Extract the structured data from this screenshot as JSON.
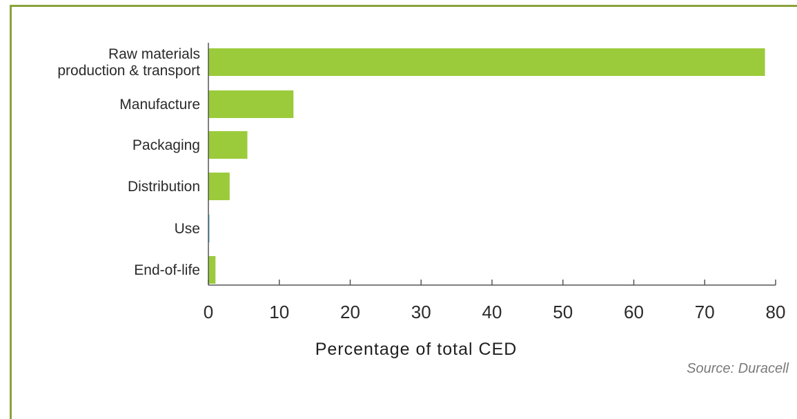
{
  "chart_data": {
    "type": "bar",
    "orientation": "horizontal",
    "categories": [
      [
        "Raw materials",
        "production & transport"
      ],
      [
        "Manufacture"
      ],
      [
        "Packaging"
      ],
      [
        "Distribution"
      ],
      [
        "Use"
      ],
      [
        "End-of-life"
      ]
    ],
    "values": [
      78.5,
      12,
      5.5,
      3,
      0.1,
      1
    ],
    "xlim": [
      0,
      80
    ],
    "xticks": [
      "0",
      "10",
      "20",
      "30",
      "40",
      "50",
      "60",
      "70",
      "80"
    ],
    "xlabel": "Percentage of total CED",
    "source": "Source: Duracell",
    "colors": {
      "bar": "#9bcb3b",
      "use_bar": "#4fb3d6",
      "frame": "#8aa23a",
      "axis": "#555555"
    }
  }
}
